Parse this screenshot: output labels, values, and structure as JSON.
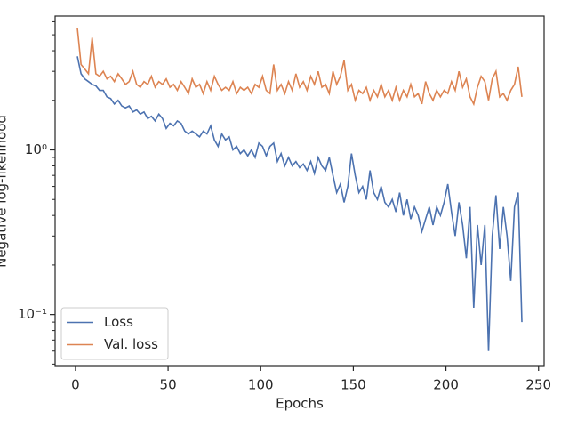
{
  "chart_data": {
    "type": "line",
    "xlabel": "Epochs",
    "ylabel": "Negative log-likelihood",
    "yscale": "log",
    "legend": "lower left",
    "xlim": [
      -11,
      253
    ],
    "ylim": [
      0.049,
      6.5
    ],
    "xticks": [
      0,
      50,
      100,
      150,
      200,
      250
    ],
    "yticks": [
      {
        "value": 0.1,
        "label": "10⁻¹"
      },
      {
        "value": 1,
        "label": "10⁰"
      }
    ],
    "yminorticks": [
      0.05,
      0.06,
      0.07,
      0.08,
      0.09,
      0.2,
      0.3,
      0.4,
      0.5,
      0.6,
      0.7,
      0.8,
      0.9,
      2,
      3,
      4,
      5,
      6
    ],
    "x": [
      1,
      3,
      5,
      7,
      9,
      11,
      13,
      15,
      17,
      19,
      21,
      23,
      25,
      27,
      29,
      31,
      33,
      35,
      37,
      39,
      41,
      43,
      45,
      47,
      49,
      51,
      53,
      55,
      57,
      59,
      61,
      63,
      65,
      67,
      69,
      71,
      73,
      75,
      77,
      79,
      81,
      83,
      85,
      87,
      89,
      91,
      93,
      95,
      97,
      99,
      101,
      103,
      105,
      107,
      109,
      111,
      113,
      115,
      117,
      119,
      121,
      123,
      125,
      127,
      129,
      131,
      133,
      135,
      137,
      139,
      141,
      143,
      145,
      147,
      149,
      151,
      153,
      155,
      157,
      159,
      161,
      163,
      165,
      167,
      169,
      171,
      173,
      175,
      177,
      179,
      181,
      183,
      185,
      187,
      189,
      191,
      193,
      195,
      197,
      199,
      201,
      203,
      205,
      207,
      209,
      211,
      213,
      215,
      217,
      219,
      221,
      223,
      225,
      227,
      229,
      231,
      233,
      235,
      237,
      239,
      241
    ],
    "series": [
      {
        "name": "Loss",
        "color": "#4c72b0",
        "values": [
          3.7,
          2.9,
          2.7,
          2.6,
          2.5,
          2.45,
          2.3,
          2.3,
          2.1,
          2.05,
          1.9,
          2.0,
          1.85,
          1.8,
          1.85,
          1.7,
          1.75,
          1.65,
          1.7,
          1.55,
          1.6,
          1.5,
          1.65,
          1.55,
          1.35,
          1.45,
          1.4,
          1.5,
          1.45,
          1.3,
          1.25,
          1.3,
          1.25,
          1.2,
          1.3,
          1.25,
          1.4,
          1.15,
          1.05,
          1.25,
          1.15,
          1.2,
          1.0,
          1.05,
          0.95,
          1.0,
          0.92,
          1.0,
          0.9,
          1.1,
          1.05,
          0.92,
          1.05,
          1.1,
          0.85,
          0.95,
          0.8,
          0.9,
          0.8,
          0.85,
          0.78,
          0.82,
          0.75,
          0.85,
          0.72,
          0.9,
          0.8,
          0.75,
          0.9,
          0.7,
          0.55,
          0.62,
          0.48,
          0.6,
          0.95,
          0.7,
          0.55,
          0.6,
          0.5,
          0.75,
          0.55,
          0.5,
          0.6,
          0.48,
          0.45,
          0.5,
          0.42,
          0.55,
          0.4,
          0.5,
          0.38,
          0.45,
          0.4,
          0.32,
          0.38,
          0.45,
          0.35,
          0.45,
          0.4,
          0.48,
          0.62,
          0.42,
          0.3,
          0.48,
          0.35,
          0.22,
          0.45,
          0.11,
          0.35,
          0.2,
          0.35,
          0.06,
          0.3,
          0.53,
          0.25,
          0.45,
          0.3,
          0.16,
          0.45,
          0.55,
          0.09
        ]
      },
      {
        "name": "Val. loss",
        "color": "#dd8452",
        "values": [
          5.5,
          3.3,
          3.1,
          2.9,
          4.8,
          2.9,
          2.8,
          3.0,
          2.7,
          2.8,
          2.6,
          2.9,
          2.7,
          2.5,
          2.6,
          3.0,
          2.5,
          2.4,
          2.6,
          2.5,
          2.8,
          2.4,
          2.6,
          2.5,
          2.7,
          2.4,
          2.5,
          2.3,
          2.6,
          2.4,
          2.2,
          2.7,
          2.4,
          2.5,
          2.2,
          2.6,
          2.3,
          2.8,
          2.5,
          2.3,
          2.4,
          2.3,
          2.6,
          2.2,
          2.4,
          2.3,
          2.4,
          2.2,
          2.5,
          2.4,
          2.8,
          2.3,
          2.2,
          3.3,
          2.3,
          2.5,
          2.2,
          2.6,
          2.3,
          2.9,
          2.4,
          2.6,
          2.3,
          2.8,
          2.5,
          3.0,
          2.4,
          2.5,
          2.2,
          3.0,
          2.5,
          2.8,
          3.5,
          2.3,
          2.5,
          2.0,
          2.3,
          2.2,
          2.4,
          2.0,
          2.3,
          2.1,
          2.5,
          2.1,
          2.3,
          2.0,
          2.4,
          2.0,
          2.3,
          2.1,
          2.5,
          2.1,
          2.2,
          1.9,
          2.6,
          2.2,
          2.0,
          2.3,
          2.1,
          2.3,
          2.2,
          2.6,
          2.3,
          3.0,
          2.4,
          2.7,
          2.1,
          1.9,
          2.4,
          2.8,
          2.6,
          2.0,
          2.7,
          3.0,
          2.1,
          2.2,
          2.0,
          2.3,
          2.5,
          3.2,
          2.1
        ]
      }
    ]
  }
}
